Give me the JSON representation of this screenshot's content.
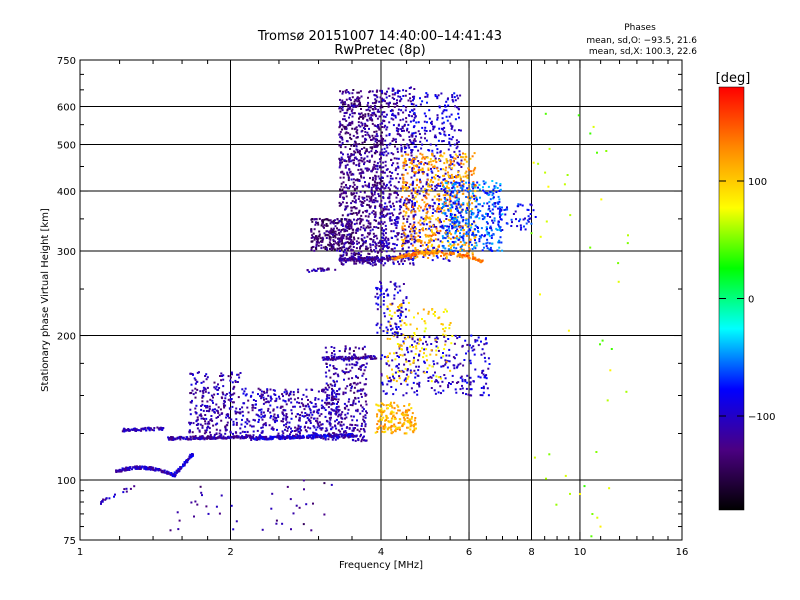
{
  "chart_data": {
    "type": "scatter",
    "title": "Tromsø 20151007 14:40:00–14:41:43",
    "subtitle": "RwPretec (8p)",
    "xlabel": "Frequency [MHz]",
    "ylabel": "Stationary phase Virtual Height [km]",
    "x_scale": "log",
    "y_scale": "log",
    "xlim": [
      1,
      16
    ],
    "ylim": [
      75,
      750
    ],
    "x_ticks": [
      1,
      2,
      4,
      6,
      8,
      10,
      16
    ],
    "x_tick_labels": [
      "1",
      "2",
      "4",
      "6",
      "8",
      "10",
      "16"
    ],
    "y_ticks": [
      75,
      100,
      200,
      300,
      400,
      500,
      600,
      750
    ],
    "y_tick_labels": [
      "75",
      "100",
      "200",
      "300",
      "400",
      "500",
      "600",
      "750"
    ],
    "x_gridlines": [
      2,
      4,
      6,
      8,
      10
    ],
    "y_gridlines": [
      100,
      200,
      300,
      400,
      500,
      600
    ],
    "grid": true,
    "stats": {
      "header": "Phases",
      "line1": "mean, sd,O: −93.5, 21.6",
      "line2": "mean, sd,X: 100.3, 22.6"
    },
    "colorbar": {
      "label": "[deg]",
      "range": [
        -180,
        180
      ],
      "ticks": [
        100,
        0,
        -100
      ],
      "tick_labels": [
        "100",
        "0",
        "−100"
      ],
      "colors": [
        "#000000",
        "#4b0082",
        "#0000ff",
        "#00ffff",
        "#00ff00",
        "#ffff00",
        "#ff8800",
        "#ff0000"
      ]
    },
    "clusters": [
      {
        "shape": "line",
        "x": [
          1.18,
          1.55
        ],
        "y": [
          104,
          102
        ],
        "curve": -6,
        "phase": -105,
        "n": 160
      },
      {
        "shape": "line",
        "x": [
          1.55,
          1.68
        ],
        "y": [
          103,
          113
        ],
        "curve": 0,
        "phase": -95,
        "n": 50
      },
      {
        "shape": "line",
        "x": [
          1.08,
          1.28
        ],
        "y": [
          89,
          97
        ],
        "curve": 0,
        "phase": -110,
        "n": 18
      },
      {
        "shape": "line",
        "x": [
          1.22,
          1.47
        ],
        "y": [
          127,
          128
        ],
        "curve": 0,
        "phase": -110,
        "n": 70
      },
      {
        "shape": "line",
        "x": [
          1.5,
          2.2
        ],
        "y": [
          122,
          123
        ],
        "curve": 0,
        "phase": -112,
        "n": 160
      },
      {
        "shape": "line",
        "x": [
          2.2,
          3.6
        ],
        "y": [
          122,
          124
        ],
        "curve": 0,
        "phase": -95,
        "n": 260
      },
      {
        "shape": "box",
        "x": [
          1.65,
          2.1
        ],
        "y": [
          122,
          168
        ],
        "phase": -112,
        "n": 260
      },
      {
        "shape": "box",
        "x": [
          2.1,
          3.3
        ],
        "y": [
          122,
          155
        ],
        "phase": -108,
        "n": 420
      },
      {
        "shape": "box",
        "x": [
          3.1,
          3.75
        ],
        "y": [
          120,
          190
        ],
        "phase": -115,
        "n": 300
      },
      {
        "shape": "line",
        "x": [
          3.05,
          3.9
        ],
        "y": [
          179,
          180
        ],
        "curve": 0,
        "phase": -118,
        "n": 90
      },
      {
        "shape": "box",
        "x": [
          3.9,
          4.7
        ],
        "y": [
          125,
          145
        ],
        "phase": 110,
        "n": 180
      },
      {
        "shape": "box",
        "x": [
          4.0,
          6.6
        ],
        "y": [
          150,
          200
        ],
        "phase": -100,
        "n": 260
      },
      {
        "shape": "box",
        "x": [
          4.1,
          5.6
        ],
        "y": [
          160,
          235
        ],
        "phase": 95,
        "n": 140
      },
      {
        "shape": "box",
        "x": [
          3.9,
          4.5
        ],
        "y": [
          200,
          260
        ],
        "phase": -95,
        "n": 90
      },
      {
        "shape": "line",
        "x": [
          2.85,
          3.25
        ],
        "y": [
          273,
          276
        ],
        "curve": 0,
        "phase": -120,
        "n": 25
      },
      {
        "shape": "box",
        "x": [
          2.9,
          3.5
        ],
        "y": [
          300,
          350
        ],
        "phase": -135,
        "n": 250
      },
      {
        "shape": "box",
        "x": [
          3.3,
          4.05
        ],
        "y": [
          280,
          650
        ],
        "phase": -125,
        "n": 950
      },
      {
        "shape": "line",
        "x": [
          3.3,
          4.3
        ],
        "y": [
          288,
          290
        ],
        "curve": 0,
        "phase": -120,
        "n": 120
      },
      {
        "shape": "box",
        "x": [
          4.0,
          4.7
        ],
        "y": [
          280,
          660
        ],
        "phase": -110,
        "n": 500
      },
      {
        "shape": "box",
        "x": [
          4.6,
          5.8
        ],
        "y": [
          285,
          640
        ],
        "phase": -95,
        "n": 400
      },
      {
        "shape": "box",
        "x": [
          4.4,
          6.2
        ],
        "y": [
          290,
          480
        ],
        "phase": 120,
        "n": 500
      },
      {
        "shape": "line",
        "x": [
          4.2,
          6.4
        ],
        "y": [
          288,
          285
        ],
        "curve": -8,
        "phase": 130,
        "n": 160
      },
      {
        "shape": "box",
        "x": [
          5.3,
          7.0
        ],
        "y": [
          300,
          420
        ],
        "phase": -60,
        "n": 350
      },
      {
        "shape": "box",
        "x": [
          6.5,
          8.2
        ],
        "y": [
          330,
          380
        ],
        "phase": -80,
        "n": 70
      },
      {
        "shape": "box",
        "x": [
          8.0,
          12.5
        ],
        "y": [
          75,
          600
        ],
        "phase": 60,
        "n": 45
      },
      {
        "shape": "box",
        "x": [
          1.5,
          3.3
        ],
        "y": [
          78,
          100
        ],
        "phase": -120,
        "n": 40
      }
    ]
  }
}
